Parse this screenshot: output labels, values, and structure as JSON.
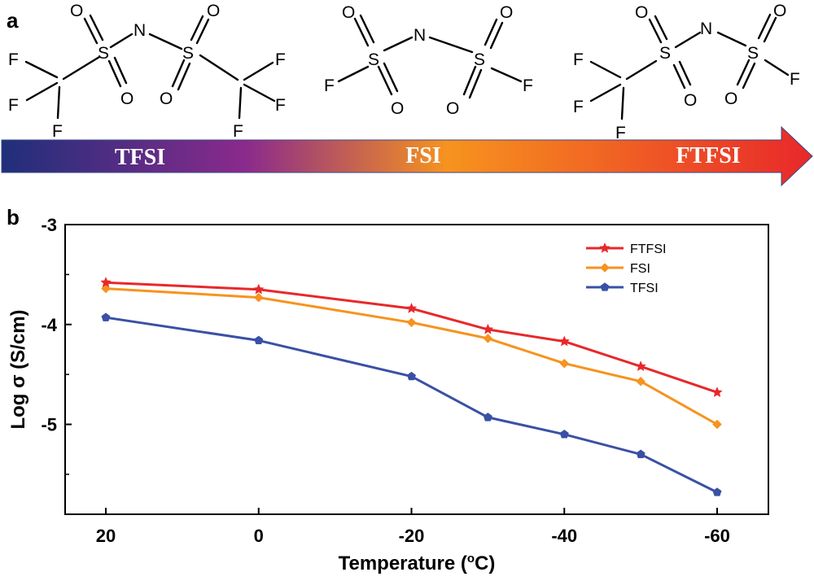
{
  "panels": {
    "a": "a",
    "b": "b"
  },
  "molecules": [
    {
      "name": "TFSI",
      "atoms": {
        "S1": "S",
        "S2": "S",
        "N": "N",
        "O1": "O",
        "O2": "O",
        "O3": "O",
        "O4": "O",
        "F1": "F",
        "F2": "F",
        "F3": "F",
        "F4": "F",
        "F5": "F",
        "F6": "F"
      }
    },
    {
      "name": "FSI",
      "atoms": {
        "S1": "S",
        "S2": "S",
        "N": "N",
        "O1": "O",
        "O2": "O",
        "O3": "O",
        "O4": "O",
        "F1": "F",
        "F2": "F"
      }
    },
    {
      "name": "FTFSI",
      "atoms": {
        "S1": "S",
        "S2": "S",
        "N": "N",
        "O1": "O",
        "O2": "O",
        "O3": "O",
        "O4": "O",
        "F1": "F",
        "F2": "F",
        "F3": "F",
        "F4": "F"
      }
    }
  ],
  "arrow": {
    "labels": [
      "TFSI",
      "FSI",
      "FTFSI"
    ],
    "colors": [
      "#1f2f7a",
      "#7b2a8a",
      "#f7931e",
      "#e8282a"
    ]
  },
  "chart_data": {
    "type": "line",
    "title": "",
    "xlabel": "Temperature (",
    "xlabel_sup": "o",
    "xlabel_suffix": "C)",
    "ylabel": "Log σ (S/cm)",
    "x_direction": "reversed",
    "xlim": [
      20,
      -60
    ],
    "ylim": [
      -3,
      -5.9
    ],
    "xticks": [
      "20",
      "0",
      "-20",
      "-40",
      "-60"
    ],
    "xtick_values": [
      20,
      0,
      -20,
      -40,
      -60
    ],
    "yticks": [
      "-3",
      "-4",
      "-5"
    ],
    "ytick_values": [
      -3,
      -4,
      -5
    ],
    "x": [
      20,
      0,
      -20,
      -30,
      -40,
      -50,
      -60
    ],
    "grid": false,
    "legend_position": "top-right",
    "series": [
      {
        "name": "FTFSI",
        "color": "#e8282a",
        "marker": "star",
        "values": [
          -3.58,
          -3.65,
          -3.84,
          -4.05,
          -4.17,
          -4.42,
          -4.68
        ]
      },
      {
        "name": "FSI",
        "color": "#f7931e",
        "marker": "diamond",
        "values": [
          -3.64,
          -3.73,
          -3.98,
          -4.14,
          -4.39,
          -4.57,
          -5.0
        ]
      },
      {
        "name": "TFSI",
        "color": "#3a50a5",
        "marker": "pentagon",
        "values": [
          -3.93,
          -4.16,
          -4.52,
          -4.93,
          -5.1,
          -5.3,
          -5.68
        ]
      }
    ]
  }
}
